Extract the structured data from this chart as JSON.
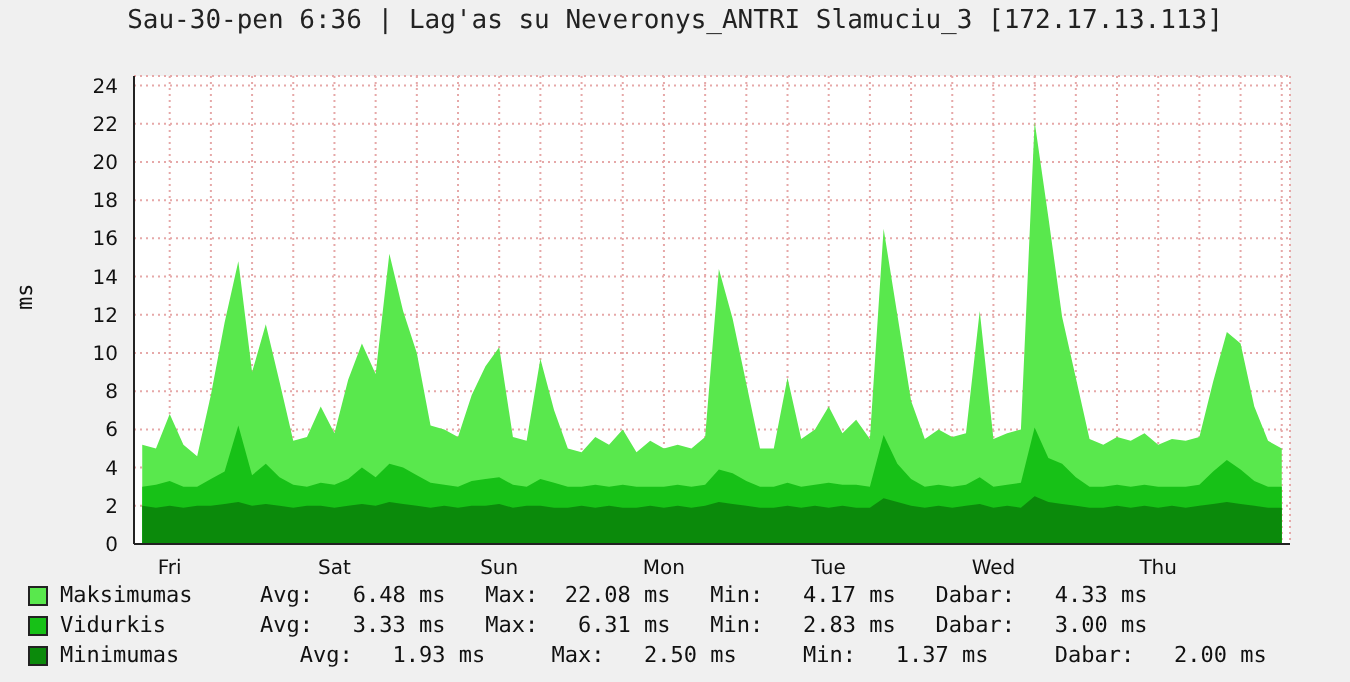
{
  "chart_data": {
    "type": "area",
    "title": "Sau-30-pen 6:36 | Lag'as su Neveronys_ANTRI Slamuciu_3 [172.17.13.113]",
    "ylabel": "ms",
    "categories": [
      null,
      null,
      "Fri",
      null,
      null,
      null,
      null,
      null,
      null,
      null,
      null,
      null,
      null,
      null,
      "Sat",
      null,
      null,
      null,
      null,
      null,
      null,
      null,
      null,
      null,
      null,
      null,
      "Sun",
      null,
      null,
      null,
      null,
      null,
      null,
      null,
      null,
      null,
      null,
      null,
      "Mon",
      null,
      null,
      null,
      null,
      null,
      null,
      null,
      null,
      null,
      null,
      null,
      "Tue",
      null,
      null,
      null,
      null,
      null,
      null,
      null,
      null,
      null,
      null,
      null,
      "Wed",
      null,
      null,
      null,
      null,
      null,
      null,
      null,
      null,
      null,
      null,
      null,
      "Thu",
      null,
      null,
      null,
      null,
      null,
      null,
      null,
      null,
      null
    ],
    "series": [
      {
        "name": "Maksimumas",
        "color": "#59e84d",
        "values": [
          5.2,
          5.0,
          6.8,
          5.2,
          4.6,
          7.8,
          11.6,
          14.8,
          9.0,
          11.5,
          8.5,
          5.4,
          5.6,
          7.2,
          5.8,
          8.6,
          10.5,
          8.9,
          15.2,
          12.2,
          10.0,
          6.2,
          6.0,
          5.6,
          7.8,
          9.3,
          10.3,
          5.6,
          5.4,
          9.7,
          7.0,
          5.0,
          4.8,
          5.6,
          5.2,
          6.0,
          4.8,
          5.4,
          5.0,
          5.2,
          5.0,
          5.6,
          14.4,
          11.8,
          8.4,
          5.0,
          5.0,
          8.7,
          5.5,
          6.0,
          7.2,
          5.8,
          6.5,
          5.5,
          16.5,
          12.0,
          7.5,
          5.5,
          6.0,
          5.6,
          5.8,
          12.2,
          5.5,
          5.8,
          6.0,
          22.1,
          17.1,
          11.9,
          8.7,
          5.5,
          5.2,
          5.6,
          5.4,
          5.8,
          5.2,
          5.5,
          5.4,
          5.6,
          8.5,
          11.1,
          10.5,
          7.2,
          5.4,
          5.0
        ]
      },
      {
        "name": "Vidurkis",
        "color": "#17c117",
        "values": [
          3.0,
          3.1,
          3.3,
          3.0,
          3.0,
          3.4,
          3.8,
          6.2,
          3.6,
          4.2,
          3.5,
          3.1,
          3.0,
          3.2,
          3.1,
          3.4,
          4.0,
          3.5,
          4.2,
          4.0,
          3.6,
          3.2,
          3.1,
          3.0,
          3.3,
          3.4,
          3.5,
          3.1,
          3.0,
          3.4,
          3.2,
          3.0,
          3.0,
          3.1,
          3.0,
          3.1,
          3.0,
          3.0,
          3.0,
          3.1,
          3.0,
          3.1,
          3.9,
          3.7,
          3.3,
          3.0,
          3.0,
          3.2,
          3.0,
          3.1,
          3.2,
          3.1,
          3.1,
          3.0,
          5.7,
          4.2,
          3.4,
          3.0,
          3.1,
          3.0,
          3.1,
          3.5,
          3.0,
          3.1,
          3.2,
          6.1,
          4.5,
          4.2,
          3.5,
          3.0,
          3.0,
          3.1,
          3.0,
          3.1,
          3.0,
          3.0,
          3.0,
          3.1,
          3.8,
          4.4,
          3.9,
          3.3,
          3.0,
          3.0
        ]
      },
      {
        "name": "Minimumas",
        "color": "#0b8a0b",
        "values": [
          2.0,
          1.9,
          2.0,
          1.9,
          2.0,
          2.0,
          2.1,
          2.2,
          2.0,
          2.1,
          2.0,
          1.9,
          2.0,
          2.0,
          1.9,
          2.0,
          2.1,
          2.0,
          2.2,
          2.1,
          2.0,
          1.9,
          2.0,
          1.9,
          2.0,
          2.0,
          2.1,
          1.9,
          2.0,
          2.0,
          1.9,
          1.9,
          2.0,
          1.9,
          2.0,
          1.9,
          1.9,
          2.0,
          1.9,
          2.0,
          1.9,
          2.0,
          2.2,
          2.1,
          2.0,
          1.9,
          1.9,
          2.0,
          1.9,
          2.0,
          1.9,
          2.0,
          1.9,
          1.9,
          2.4,
          2.2,
          2.0,
          1.9,
          2.0,
          1.9,
          2.0,
          2.1,
          1.9,
          2.0,
          1.9,
          2.5,
          2.2,
          2.1,
          2.0,
          1.9,
          1.9,
          2.0,
          1.9,
          2.0,
          1.9,
          2.0,
          1.9,
          2.0,
          2.1,
          2.2,
          2.1,
          2.0,
          1.9,
          1.9
        ]
      }
    ],
    "ylim": [
      0,
      24.5
    ],
    "yticks": [
      0,
      2,
      4,
      6,
      8,
      10,
      12,
      14,
      16,
      18,
      20,
      22,
      24
    ],
    "grid": true,
    "legend": "bottom",
    "annotations": [
      "Avg:   6.48 ms   Max:  22.08 ms   Min:   4.17 ms   Dabar:   4.33 ms",
      "Avg:   3.33 ms   Max:   6.31 ms   Min:   2.83 ms   Dabar:   3.00 ms",
      "   Avg:   1.93 ms     Max:   2.50 ms     Min:   1.37 ms     Dabar:   2.00 ms"
    ]
  }
}
